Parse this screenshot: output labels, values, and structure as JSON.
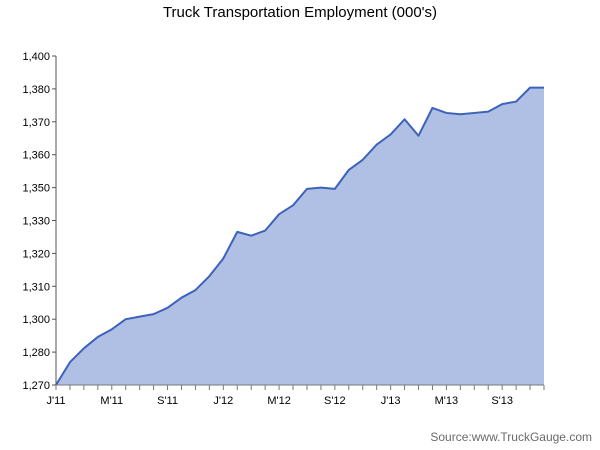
{
  "chart_data": {
    "type": "area",
    "title": "Truck Transportation Employment (000's)",
    "xlabel": "",
    "ylabel": "",
    "x_tick_labels": [
      "J'11",
      "M'11",
      "S'11",
      "J'12",
      "M'12",
      "S'12",
      "J'13",
      "M'13",
      "S'13"
    ],
    "y_tick_labels": [
      "1,270",
      "1,280",
      "1,300",
      "1,310",
      "1,320",
      "1,330",
      "1,350",
      "1,360",
      "1,370",
      "1,380",
      "1,400"
    ],
    "x": [
      "Jan 2011",
      "Feb 2011",
      "Mar 2011",
      "Apr 2011",
      "May 2011",
      "Jun 2011",
      "Jul 2011",
      "Aug 2011",
      "Sep 2011",
      "Oct 2011",
      "Nov 2011",
      "Dec 2011",
      "Jan 2012",
      "Feb 2012",
      "Mar 2012",
      "Apr 2012",
      "May 2012",
      "Jun 2012",
      "Jul 2012",
      "Aug 2012",
      "Sep 2012",
      "Oct 2012",
      "Nov 2012",
      "Dec 2012",
      "Jan 2013",
      "Feb 2013",
      "Mar 2013",
      "Apr 2013",
      "May 2013",
      "Jun 2013",
      "Jul 2013",
      "Aug 2013",
      "Sep 2013",
      "Oct 2013",
      "Nov 2013",
      "Dec 2013"
    ],
    "series": [
      {
        "values": [
          1270,
          1279,
          1284.5,
          1289,
          1292,
          1296,
          1297,
          1298,
          1300.5,
          1304.5,
          1307.5,
          1313,
          1320,
          1330.5,
          1329,
          1331,
          1337.5,
          1341,
          1347.5,
          1348,
          1347.5,
          1355,
          1359,
          1365,
          1369,
          1375,
          1368.5,
          1379.5,
          1377.5,
          1377,
          1377.5,
          1378,
          1381,
          1382,
          1387.5,
          1387.5
        ]
      }
    ],
    "colors": {
      "fill": "#b0c0e4",
      "line": "#3d62bb"
    },
    "grid": false,
    "legend": "none"
  },
  "source": "Source:www.TruckGauge.com"
}
